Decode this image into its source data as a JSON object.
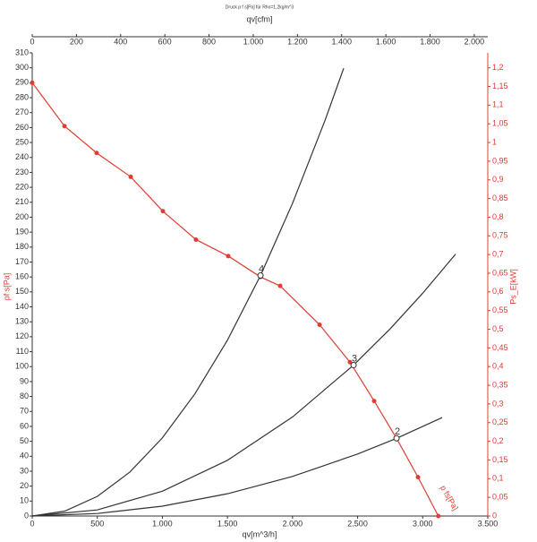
{
  "chart_data": {
    "type": "line",
    "title": "Druck p f s[Pa] für Rho=1,2kg/m^3",
    "x_label": "qv[m^3/h]",
    "x2_label": "qv[cfm]",
    "y_label": "pf s[Pa]",
    "y2_label": "Ps_E[kW]",
    "xlim": [
      0,
      3500
    ],
    "xticks": [
      0,
      500,
      {
        "value": 1000,
        "label": "1.000"
      },
      {
        "value": 1500,
        "label": "1.500"
      },
      {
        "value": 2000,
        "label": "2.000"
      },
      {
        "value": 2500,
        "label": "2.500"
      },
      {
        "value": 3000,
        "label": "3.000"
      },
      {
        "value": 3500,
        "label": "3.500"
      }
    ],
    "x2lim": [
      0,
      2061
    ],
    "x2ticks": [
      0,
      200,
      400,
      600,
      800,
      {
        "value": 1000,
        "label": "1.000"
      },
      {
        "value": 1200,
        "label": "1.200"
      },
      {
        "value": 1400,
        "label": "1.400"
      },
      {
        "value": 1600,
        "label": "1.600"
      },
      {
        "value": 1800,
        "label": "1.800"
      },
      {
        "value": 2000,
        "label": "2.000"
      }
    ],
    "ylim": [
      0,
      310
    ],
    "yticks": [
      0,
      10,
      20,
      30,
      40,
      50,
      60,
      70,
      80,
      90,
      100,
      110,
      120,
      130,
      140,
      150,
      160,
      170,
      180,
      190,
      200,
      210,
      220,
      230,
      240,
      250,
      260,
      270,
      280,
      290,
      300,
      310
    ],
    "y2lim": [
      0,
      1.24
    ],
    "y2ticks": [
      0,
      {
        "value": 0.05,
        "label": "0,05"
      },
      {
        "value": 0.1,
        "label": "0,1"
      },
      {
        "value": 0.15,
        "label": "0,15"
      },
      {
        "value": 0.2,
        "label": "0,2"
      },
      {
        "value": 0.25,
        "label": "0,25"
      },
      {
        "value": 0.3,
        "label": "0,3"
      },
      {
        "value": 0.35,
        "label": "0,35"
      },
      {
        "value": 0.4,
        "label": "0,4"
      },
      {
        "value": 0.45,
        "label": "0,45"
      },
      {
        "value": 0.5,
        "label": "0,5"
      },
      {
        "value": 0.55,
        "label": "0,55"
      },
      {
        "value": 0.6,
        "label": "0,6"
      },
      {
        "value": 0.65,
        "label": "0,65"
      },
      {
        "value": 0.7,
        "label": "0,7"
      },
      {
        "value": 0.75,
        "label": "0,75"
      },
      {
        "value": 0.8,
        "label": "0,8"
      },
      {
        "value": 0.85,
        "label": "0,85"
      },
      {
        "value": 0.9,
        "label": "0,9"
      },
      {
        "value": 0.95,
        "label": "0,95"
      },
      {
        "value": 1,
        "label": "1"
      },
      {
        "value": 1.05,
        "label": "1,05"
      },
      {
        "value": 1.1,
        "label": "1,1"
      },
      {
        "value": 1.15,
        "label": "1,15"
      },
      {
        "value": 1.2,
        "label": "1,2"
      }
    ],
    "axis_color": "#333333",
    "y2_color": "#e03c31",
    "series": [
      {
        "color": "#e03c31",
        "markers": true,
        "x": [
          0,
          248,
          495,
          757,
          1004,
          1258,
          1506,
          1754,
          1905,
          2208,
          2441,
          2627,
          2799,
          2964,
          3120
        ],
        "values": [
          290,
          261,
          243,
          227,
          204,
          185,
          174,
          160,
          154,
          128,
          103,
          77,
          52,
          26,
          0
        ]
      },
      {
        "color": "#333333",
        "markers": false,
        "x": [
          0,
          250,
          500,
          750,
          1000,
          1250,
          1500,
          1754,
          2000,
          2250,
          2393
        ],
        "values": [
          0,
          3.3,
          13.1,
          29.4,
          52.3,
          81.8,
          117.7,
          161,
          209.3,
          264.9,
          299.7
        ]
      },
      {
        "color": "#333333",
        "markers": false,
        "x": [
          0,
          500,
          1000,
          1500,
          2000,
          2469,
          2750,
          3000,
          3253
        ],
        "values": [
          0,
          4.1,
          16.6,
          37.3,
          66.3,
          101,
          125.3,
          149.1,
          175.3
        ]
      },
      {
        "color": "#333333",
        "markers": false,
        "x": [
          0,
          500,
          1000,
          1500,
          2000,
          2500,
          2799,
          3150
        ],
        "values": [
          0,
          1.7,
          6.6,
          14.9,
          26.5,
          41.5,
          52,
          65.9
        ]
      }
    ],
    "points": [
      {
        "label": "4",
        "x": 1754,
        "y": 161
      },
      {
        "label": "3",
        "x": 2469,
        "y": 101
      },
      {
        "label": "2",
        "x": 2799,
        "y": 52
      }
    ],
    "curve_label": {
      "text": "p fs[Pa]",
      "x": 3200,
      "y": 12
    }
  }
}
